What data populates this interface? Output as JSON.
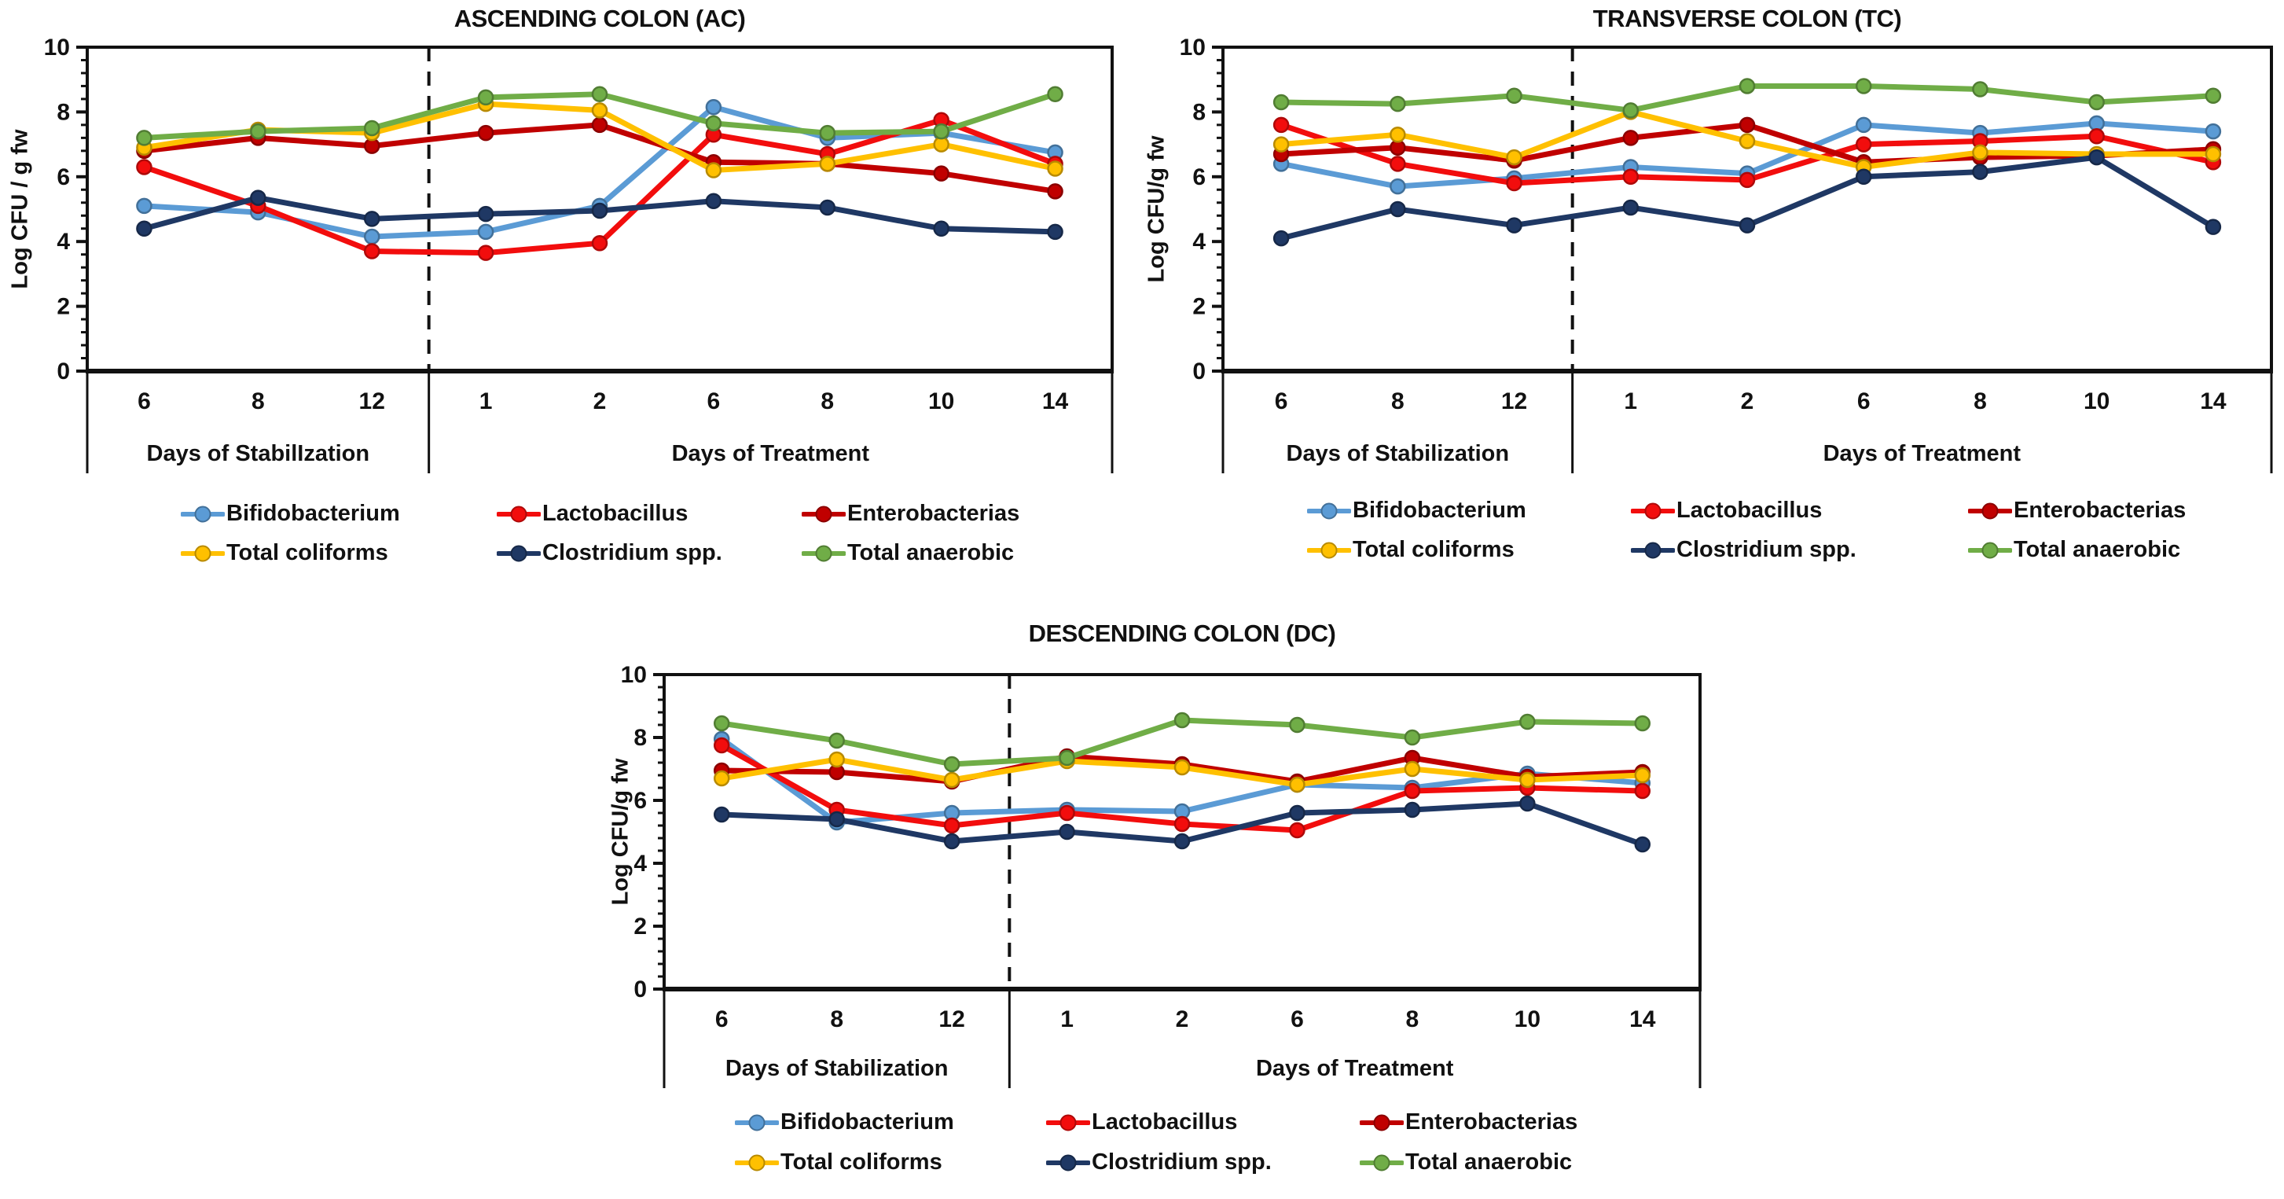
{
  "figure": {
    "description_title_ac": "ASCENDING COLON (AC)",
    "description_title_tc": "TRANSVERSE COLON (TC)",
    "description_title_dc": "DESCENDING COLON (DC)"
  },
  "chart_data": [
    {
      "type": "line",
      "title": "ASCENDING COLON (AC)",
      "ylabel": "Log CFU / g fw",
      "ylim": [
        0,
        10
      ],
      "yticks": [
        0,
        2,
        4,
        6,
        8,
        10
      ],
      "grid": false,
      "legend_position": "bottom",
      "categories": [
        "6",
        "8",
        "12",
        "1",
        "2",
        "6",
        "8",
        "10",
        "14"
      ],
      "group_labels": {
        "stabilization": "Days of StabilIzation",
        "treatment": "Days of Treatment"
      },
      "stabilization_category_count": 3,
      "separator_style": "dashed-vertical-line",
      "series": [
        {
          "name": "Bifidobacterium",
          "color": "#5B9BD5",
          "values": [
            5.1,
            4.9,
            4.15,
            4.3,
            5.1,
            8.15,
            7.2,
            7.35,
            6.75
          ]
        },
        {
          "name": "Lactobacillus",
          "color": "#F20D0D",
          "values": [
            6.3,
            5.1,
            3.7,
            3.65,
            3.95,
            7.3,
            6.7,
            7.75,
            6.4
          ]
        },
        {
          "name": "Enterobacterias",
          "color": "#C00000",
          "values": [
            6.8,
            7.2,
            6.95,
            7.35,
            7.6,
            6.45,
            6.4,
            6.1,
            5.55
          ]
        },
        {
          "name": "Total coliforms",
          "color": "#FFC000",
          "values": [
            6.9,
            7.45,
            7.35,
            8.25,
            8.05,
            6.2,
            6.4,
            7.0,
            6.25
          ]
        },
        {
          "name": "Clostridium spp.",
          "color": "#1F3864",
          "values": [
            4.4,
            5.35,
            4.7,
            4.85,
            4.95,
            5.25,
            5.05,
            4.4,
            4.3
          ]
        },
        {
          "name": "Total anaerobic",
          "color": "#70AD47",
          "values": [
            7.2,
            7.4,
            7.5,
            8.45,
            8.55,
            7.65,
            7.35,
            7.4,
            8.55
          ]
        }
      ]
    },
    {
      "type": "line",
      "title": "TRANSVERSE COLON (TC)",
      "ylabel": "Log CFU/g fw",
      "ylim": [
        0,
        10
      ],
      "yticks": [
        0,
        2,
        4,
        6,
        8,
        10
      ],
      "grid": false,
      "legend_position": "bottom",
      "categories": [
        "6",
        "8",
        "12",
        "1",
        "2",
        "6",
        "8",
        "10",
        "14"
      ],
      "group_labels": {
        "stabilization": "Days of Stabilization",
        "treatment": "Days of Treatment"
      },
      "stabilization_category_count": 3,
      "separator_style": "dashed-vertical-line",
      "series": [
        {
          "name": "Bifidobacterium",
          "color": "#5B9BD5",
          "values": [
            6.4,
            5.7,
            5.95,
            6.3,
            6.1,
            7.6,
            7.35,
            7.65,
            7.4
          ]
        },
        {
          "name": "Lactobacillus",
          "color": "#F20D0D",
          "values": [
            7.6,
            6.4,
            5.8,
            6.0,
            5.9,
            7.0,
            7.1,
            7.25,
            6.45
          ]
        },
        {
          "name": "Enterobacterias",
          "color": "#C00000",
          "values": [
            6.7,
            6.9,
            6.5,
            7.2,
            7.6,
            6.45,
            6.6,
            6.65,
            6.85
          ]
        },
        {
          "name": "Total coliforms",
          "color": "#FFC000",
          "values": [
            7.0,
            7.3,
            6.6,
            8.0,
            7.1,
            6.3,
            6.75,
            6.7,
            6.7
          ]
        },
        {
          "name": "Clostridium spp.",
          "color": "#1F3864",
          "values": [
            4.1,
            5.0,
            4.5,
            5.05,
            4.5,
            6.0,
            6.15,
            6.6,
            4.45
          ]
        },
        {
          "name": "Total anaerobic",
          "color": "#70AD47",
          "values": [
            8.3,
            8.25,
            8.5,
            8.05,
            8.8,
            8.8,
            8.7,
            8.3,
            8.5
          ]
        }
      ]
    },
    {
      "type": "line",
      "title": "DESCENDING COLON (DC)",
      "ylabel": "Log CFU/g fw",
      "ylim": [
        0,
        10
      ],
      "yticks": [
        0,
        2,
        4,
        6,
        8,
        10
      ],
      "grid": false,
      "legend_position": "bottom",
      "categories": [
        "6",
        "8",
        "12",
        "1",
        "2",
        "6",
        "8",
        "10",
        "14"
      ],
      "group_labels": {
        "stabilization": "Days of Stabilization",
        "treatment": "Days of Treatment"
      },
      "stabilization_category_count": 3,
      "separator_style": "dashed-vertical-line",
      "series": [
        {
          "name": "Bifidobacterium",
          "color": "#5B9BD5",
          "values": [
            7.95,
            5.3,
            5.6,
            5.7,
            5.65,
            6.5,
            6.4,
            6.85,
            6.55
          ]
        },
        {
          "name": "Lactobacillus",
          "color": "#F20D0D",
          "values": [
            7.75,
            5.7,
            5.2,
            5.6,
            5.25,
            5.05,
            6.3,
            6.4,
            6.3
          ]
        },
        {
          "name": "Enterobacterias",
          "color": "#C00000",
          "values": [
            6.95,
            6.9,
            6.6,
            7.4,
            7.15,
            6.6,
            7.35,
            6.75,
            6.9
          ]
        },
        {
          "name": "Total coliforms",
          "color": "#FFC000",
          "values": [
            6.7,
            7.3,
            6.65,
            7.25,
            7.05,
            6.5,
            7.0,
            6.65,
            6.8
          ]
        },
        {
          "name": "Clostridium spp.",
          "color": "#1F3864",
          "values": [
            5.55,
            5.4,
            4.7,
            5.0,
            4.7,
            5.6,
            5.7,
            5.9,
            4.6
          ]
        },
        {
          "name": "Total anaerobic",
          "color": "#70AD47",
          "values": [
            8.45,
            7.9,
            7.15,
            7.35,
            8.55,
            8.4,
            8.0,
            8.5,
            8.45
          ]
        }
      ]
    }
  ]
}
